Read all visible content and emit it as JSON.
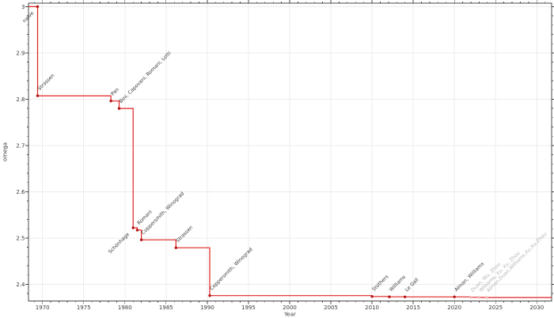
{
  "figure": {
    "background": "#ffffff"
  },
  "chart_data": {
    "type": "line",
    "step": "post",
    "title": "",
    "xlabel": "Year",
    "ylabel": "omega",
    "xlim": [
      1968.3,
      2031.8
    ],
    "ylim": [
      2.3639,
      3.0075
    ],
    "x_major_ticks": [
      1970,
      1975,
      1980,
      1985,
      1990,
      1995,
      2000,
      2005,
      2010,
      2015,
      2020,
      2025,
      2030
    ],
    "x_minor_step": 1,
    "y_major_ticks": [
      2.4,
      2.5,
      2.6,
      2.7,
      2.8,
      2.9,
      3
    ],
    "y_major_tick_labels": [
      "2.4",
      "2.5",
      "2.6",
      "2.7",
      "2.8",
      "2.9",
      "3"
    ],
    "y_minor_step": 0.02,
    "grid": true,
    "legend": "none",
    "colors": {
      "line": "#e02222",
      "marker": "#b51414",
      "marker_faded": "#f2b4b4",
      "label": "#3b3b3b",
      "label_faded": "#b5b5b5",
      "grid": "#ececec",
      "spine": "#4a4a4a",
      "tick_label": "#3b3b3b"
    },
    "points": [
      {
        "label": "naive",
        "year": 1969.4,
        "omega": 3.0,
        "label_anchor": "end",
        "faded": false
      },
      {
        "label": "Strassen",
        "year": 1969.4,
        "omega": 2.8074,
        "label_anchor": "start",
        "faded": false
      },
      {
        "label": "Pan",
        "year": 1978.3,
        "omega": 2.796,
        "label_anchor": "start",
        "faded": false
      },
      {
        "label": "Bini, Capovani, Romani, Lotti",
        "year": 1979.3,
        "omega": 2.78,
        "label_anchor": "start",
        "faded": false
      },
      {
        "label": "Schönhage",
        "year": 1981.0,
        "omega": 2.522,
        "label_anchor": "end",
        "faded": false
      },
      {
        "label": "Romani",
        "year": 1981.5,
        "omega": 2.517,
        "label_anchor": "start",
        "faded": false
      },
      {
        "label": "Coppersmith, Winograd",
        "year": 1982.0,
        "omega": 2.496,
        "label_anchor": "start",
        "faded": false
      },
      {
        "label": "Strassen",
        "year": 1986.2,
        "omega": 2.479,
        "label_anchor": "start",
        "faded": false
      },
      {
        "label": "Coppersmith, Winograd",
        "year": 1990.3,
        "omega": 2.3755,
        "label_anchor": "start",
        "faded": false
      },
      {
        "label": "Stothers",
        "year": 2010.0,
        "omega": 2.3737,
        "label_anchor": "start",
        "faded": false
      },
      {
        "label": "Williams",
        "year": 2012.1,
        "omega": 2.3729,
        "label_anchor": "start",
        "faded": false
      },
      {
        "label": "Le Gall",
        "year": 2014.0,
        "omega": 2.3728639,
        "label_anchor": "start",
        "faded": false
      },
      {
        "label": "Alman, Williams",
        "year": 2020.0,
        "omega": 2.3728596,
        "label_anchor": "start",
        "faded": false
      },
      {
        "label": "Duan, Wu, Zhou",
        "year": 2022.0,
        "omega": 2.371866,
        "label_anchor": "start",
        "faded": true
      },
      {
        "label": "Williams, Xu, Xu, Zhou",
        "year": 2023.0,
        "omega": 2.371552,
        "label_anchor": "start",
        "faded": true
      },
      {
        "label": "Alman,Duan,Williams,Xu,Xu,Zhou",
        "year": 2023.9,
        "omega": 2.371339,
        "label_anchor": "start",
        "faded": true
      }
    ]
  }
}
